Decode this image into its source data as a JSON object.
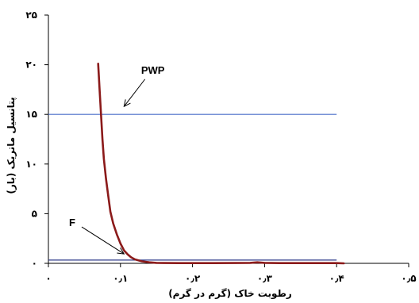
{
  "chart_data": {
    "type": "line",
    "xlabel": "رطوبت خاک (گرم در گرم)",
    "ylabel": "پتانسیل ماتریک (بار)",
    "xlim": [
      0,
      0.5
    ],
    "ylim": [
      0,
      25
    ],
    "x_ticks": [
      0,
      0.1,
      0.2,
      0.3,
      0.4,
      0.5
    ],
    "x_tick_labels": [
      "۰",
      "۰٫۱",
      "۰٫۲",
      "۰٫۳",
      "۰٫۴",
      "۰٫۵"
    ],
    "y_ticks": [
      0,
      5,
      10,
      15,
      20,
      25
    ],
    "y_tick_labels": [
      "۰",
      "۵",
      "۱۰",
      "۱۵",
      "۲۰",
      "۲۵"
    ],
    "grid": false,
    "legend": "none",
    "series": [
      {
        "color": "#8b1a1a",
        "x": [
          0.069,
          0.071,
          0.073,
          0.075,
          0.077,
          0.08,
          0.083,
          0.086,
          0.09,
          0.095,
          0.1,
          0.105,
          0.11,
          0.115,
          0.12,
          0.13,
          0.14,
          0.15,
          0.16,
          0.18,
          0.2,
          0.23,
          0.26,
          0.28,
          0.29,
          0.3,
          0.32,
          0.35,
          0.38,
          0.4,
          0.41
        ],
        "y": [
          20.1,
          17.5,
          15.0,
          12.5,
          10.5,
          8.5,
          6.8,
          5.2,
          4.0,
          2.9,
          2.0,
          1.3,
          0.9,
          0.6,
          0.4,
          0.2,
          0.1,
          0.05,
          0.03,
          0.02,
          0.02,
          0.02,
          0.03,
          0.05,
          0.1,
          0.05,
          0.02,
          0.02,
          0.02,
          0.02,
          0.0
        ]
      }
    ],
    "reference_lines": [
      {
        "y": 15,
        "x_range": [
          0,
          0.4
        ],
        "color": "#4a6fc8"
      },
      {
        "y": 0.33,
        "x_range": [
          0,
          0.4
        ],
        "color": "#2f3a8a"
      }
    ],
    "annotations": [
      {
        "text": "PWP",
        "x": 0.145,
        "y": 19.1,
        "arrow_to": [
          0.105,
          15.8
        ]
      },
      {
        "text": "F",
        "x": 0.033,
        "y": 3.75,
        "arrow_to": [
          0.105,
          0.95
        ]
      }
    ]
  }
}
